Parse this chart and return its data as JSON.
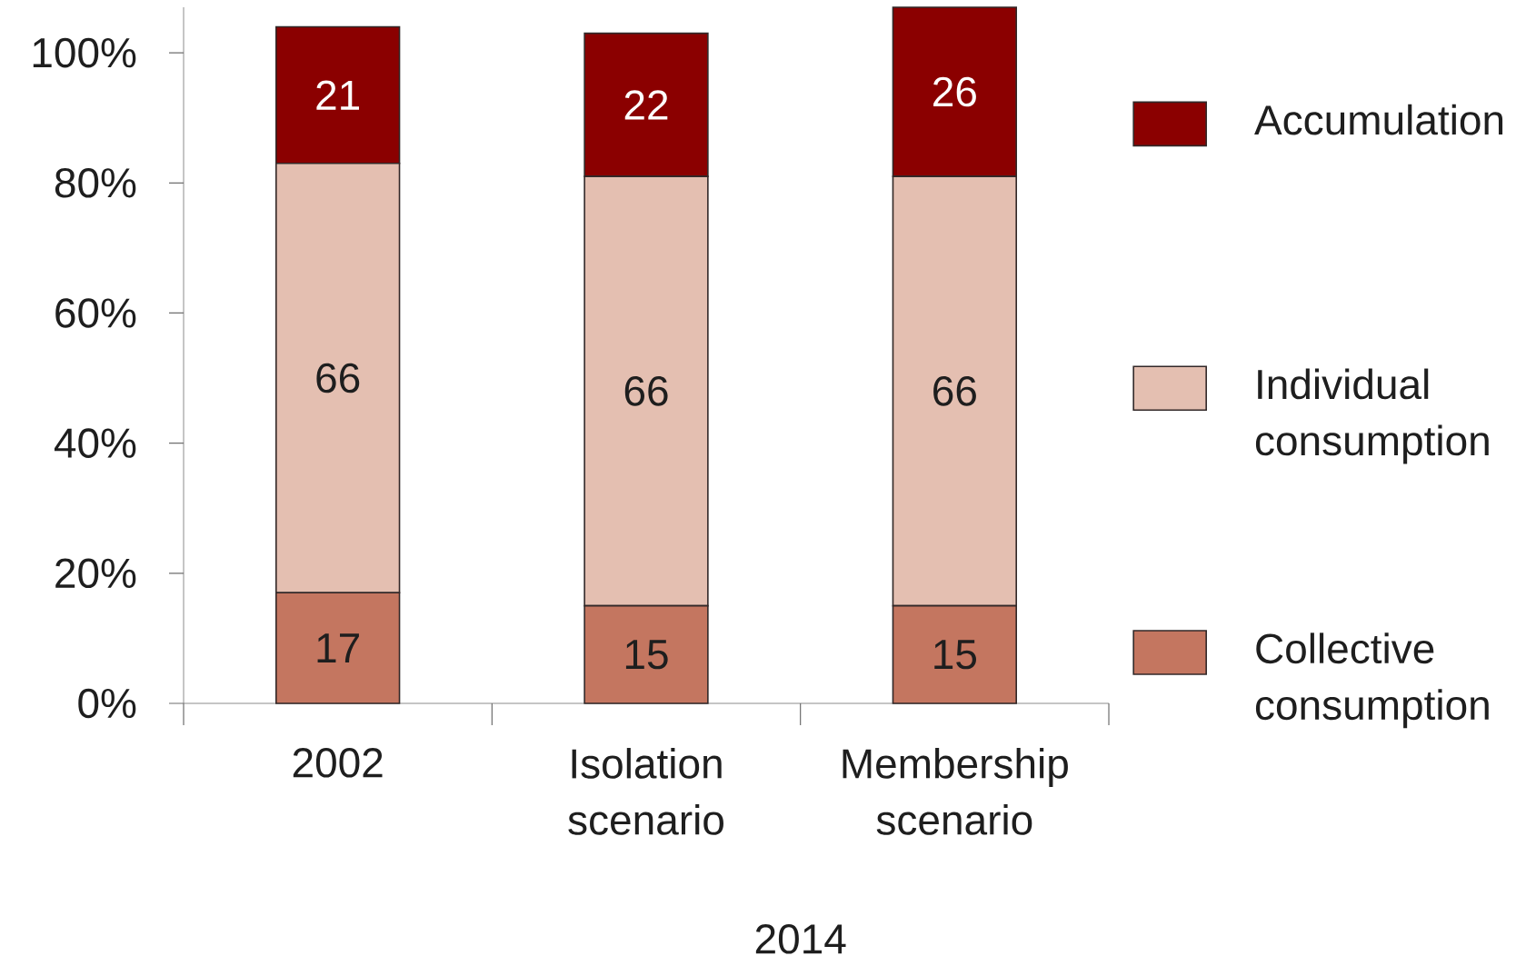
{
  "chart_data": {
    "type": "bar",
    "stacked": true,
    "categories": [
      "2002",
      "Isolation scenario",
      "Membership scenario"
    ],
    "xlabel": "2014",
    "series": [
      {
        "name": "Collective consumption",
        "color": "#c47660",
        "values": [
          17,
          15,
          15
        ]
      },
      {
        "name": "Individual consumption",
        "color": "#e4bfb1",
        "values": [
          66,
          66,
          66
        ]
      },
      {
        "name": "Accumulation",
        "color": "#8b0000",
        "values": [
          21,
          22,
          26
        ]
      }
    ],
    "ylim": [
      0,
      107
    ],
    "yticks": [
      {
        "value": 0,
        "label": "0%"
      },
      {
        "value": 20,
        "label": "20%"
      },
      {
        "value": 40,
        "label": "40%"
      },
      {
        "value": 60,
        "label": "60%"
      },
      {
        "value": 80,
        "label": "80%"
      },
      {
        "value": 100,
        "label": "100%"
      }
    ],
    "data_labels": true,
    "legend": "right"
  }
}
